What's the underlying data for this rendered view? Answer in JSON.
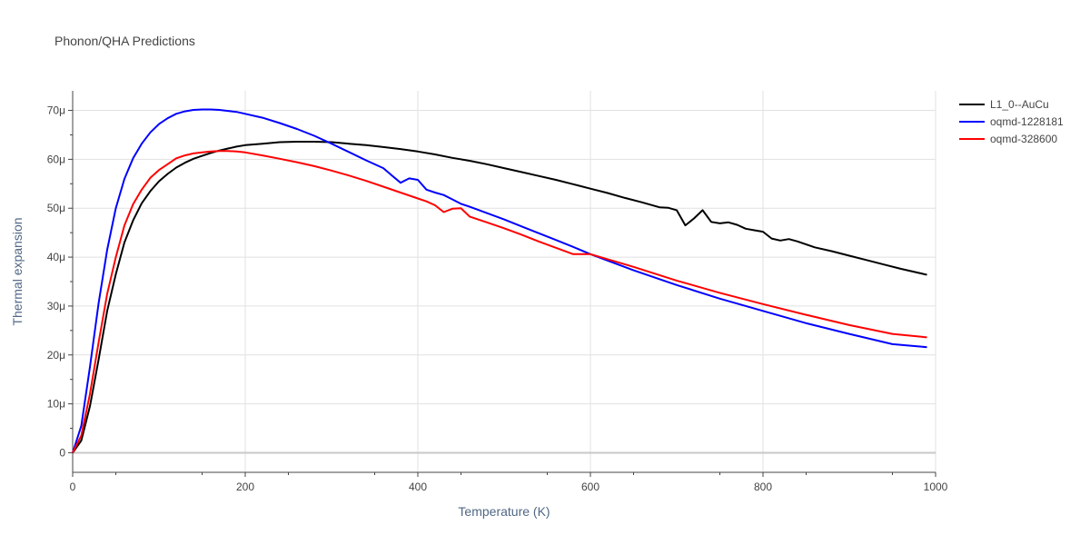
{
  "chart_data": {
    "type": "line",
    "title": "Phonon/QHA Predictions",
    "xlabel": "Temperature (K)",
    "ylabel": "Thermal expansion",
    "xlim": [
      0,
      1000
    ],
    "ylim": [
      -4e-06,
      7.4e-05
    ],
    "x_ticks": [
      0,
      200,
      400,
      600,
      800,
      1000
    ],
    "x_tick_labels": [
      "0",
      "200",
      "400",
      "600",
      "800",
      "1000"
    ],
    "y_ticks": [
      0,
      1e-05,
      2e-05,
      3e-05,
      4e-05,
      5e-05,
      6e-05,
      7e-05
    ],
    "y_tick_labels": [
      "0",
      "10μ",
      "20μ",
      "30μ",
      "40μ",
      "50μ",
      "60μ",
      "70μ"
    ],
    "grid": true,
    "legend_position": "top-right",
    "series": [
      {
        "name": "L1_0--AuCu",
        "color": "#000000",
        "x": [
          0,
          10,
          20,
          30,
          40,
          50,
          60,
          70,
          80,
          90,
          100,
          110,
          120,
          130,
          140,
          150,
          160,
          170,
          180,
          190,
          200,
          220,
          240,
          260,
          280,
          300,
          320,
          340,
          360,
          380,
          400,
          420,
          440,
          460,
          480,
          500,
          520,
          540,
          560,
          580,
          600,
          620,
          640,
          660,
          680,
          690,
          700,
          710,
          720,
          730,
          740,
          750,
          760,
          770,
          780,
          790,
          800,
          810,
          820,
          830,
          840,
          850,
          860,
          880,
          900,
          920,
          940,
          960,
          990
        ],
        "y": [
          0,
          2.5e-06,
          9.5e-06,
          1.9e-05,
          2.9e-05,
          3.65e-05,
          4.3e-05,
          4.75e-05,
          5.1e-05,
          5.35e-05,
          5.55e-05,
          5.7e-05,
          5.83e-05,
          5.93e-05,
          6.01e-05,
          6.07e-05,
          6.13e-05,
          6.18e-05,
          6.22e-05,
          6.26e-05,
          6.29e-05,
          6.32e-05,
          6.35e-05,
          6.36e-05,
          6.36e-05,
          6.35e-05,
          6.32e-05,
          6.29e-05,
          6.25e-05,
          6.21e-05,
          6.16e-05,
          6.1e-05,
          6.03e-05,
          5.97e-05,
          5.9e-05,
          5.82e-05,
          5.74e-05,
          5.66e-05,
          5.58e-05,
          5.49e-05,
          5.4e-05,
          5.31e-05,
          5.21e-05,
          5.12e-05,
          5.02e-05,
          5.01e-05,
          4.96e-05,
          4.65e-05,
          4.79e-05,
          4.96e-05,
          4.72e-05,
          4.69e-05,
          4.71e-05,
          4.66e-05,
          4.58e-05,
          4.55e-05,
          4.52e-05,
          4.38e-05,
          4.34e-05,
          4.37e-05,
          4.32e-05,
          4.26e-05,
          4.2e-05,
          4.12e-05,
          4.03e-05,
          3.94e-05,
          3.85e-05,
          3.76e-05,
          3.64e-05
        ]
      },
      {
        "name": "oqmd-1228181",
        "color": "#0000ff",
        "x": [
          0,
          10,
          20,
          30,
          40,
          50,
          60,
          70,
          80,
          90,
          100,
          110,
          120,
          130,
          140,
          150,
          160,
          170,
          180,
          190,
          200,
          220,
          240,
          260,
          280,
          300,
          320,
          340,
          360,
          370,
          380,
          390,
          400,
          410,
          420,
          430,
          440,
          450,
          460,
          480,
          500,
          520,
          540,
          560,
          580,
          600,
          650,
          700,
          750,
          800,
          850,
          900,
          950,
          990
        ],
        "y": [
          0,
          5.5e-06,
          1.75e-05,
          3.05e-05,
          4.15e-05,
          5e-05,
          5.6e-05,
          6.02e-05,
          6.32e-05,
          6.55e-05,
          6.72e-05,
          6.84e-05,
          6.93e-05,
          6.98e-05,
          7.01e-05,
          7.02e-05,
          7.02e-05,
          7.01e-05,
          6.99e-05,
          6.97e-05,
          6.93e-05,
          6.85e-05,
          6.74e-05,
          6.62e-05,
          6.48e-05,
          6.32e-05,
          6.15e-05,
          5.98e-05,
          5.82e-05,
          5.67e-05,
          5.52e-05,
          5.61e-05,
          5.58e-05,
          5.38e-05,
          5.32e-05,
          5.27e-05,
          5.18e-05,
          5.09e-05,
          5.03e-05,
          4.9e-05,
          4.77e-05,
          4.63e-05,
          4.49e-05,
          4.35e-05,
          4.21e-05,
          4.06e-05,
          3.73e-05,
          3.43e-05,
          3.15e-05,
          2.9e-05,
          2.65e-05,
          2.43e-05,
          2.22e-05,
          2.16e-05
        ]
      },
      {
        "name": "oqmd-328600",
        "color": "#ff0000",
        "x": [
          0,
          10,
          20,
          30,
          40,
          50,
          60,
          70,
          80,
          90,
          100,
          110,
          120,
          130,
          140,
          150,
          160,
          170,
          180,
          190,
          200,
          220,
          240,
          260,
          280,
          300,
          320,
          340,
          360,
          380,
          400,
          410,
          420,
          430,
          440,
          450,
          460,
          480,
          500,
          520,
          540,
          560,
          580,
          600,
          650,
          700,
          750,
          800,
          850,
          900,
          950,
          990
        ],
        "y": [
          0,
          3.5e-06,
          1.2e-05,
          2.25e-05,
          3.25e-05,
          4e-05,
          4.65e-05,
          5.08e-05,
          5.38e-05,
          5.62e-05,
          5.78e-05,
          5.9e-05,
          6.02e-05,
          6.08e-05,
          6.12e-05,
          6.14e-05,
          6.16e-05,
          6.17e-05,
          6.17e-05,
          6.16e-05,
          6.14e-05,
          6.08e-05,
          6.01e-05,
          5.94e-05,
          5.86e-05,
          5.77e-05,
          5.67e-05,
          5.56e-05,
          5.44e-05,
          5.32e-05,
          5.2e-05,
          5.14e-05,
          5.06e-05,
          4.92e-05,
          4.99e-05,
          5e-05,
          4.83e-05,
          4.71e-05,
          4.59e-05,
          4.46e-05,
          4.32e-05,
          4.19e-05,
          4.06e-05,
          4.06e-05,
          3.8e-05,
          3.52e-05,
          3.27e-05,
          3.04e-05,
          2.82e-05,
          2.61e-05,
          2.43e-05,
          2.36e-05
        ]
      }
    ]
  }
}
